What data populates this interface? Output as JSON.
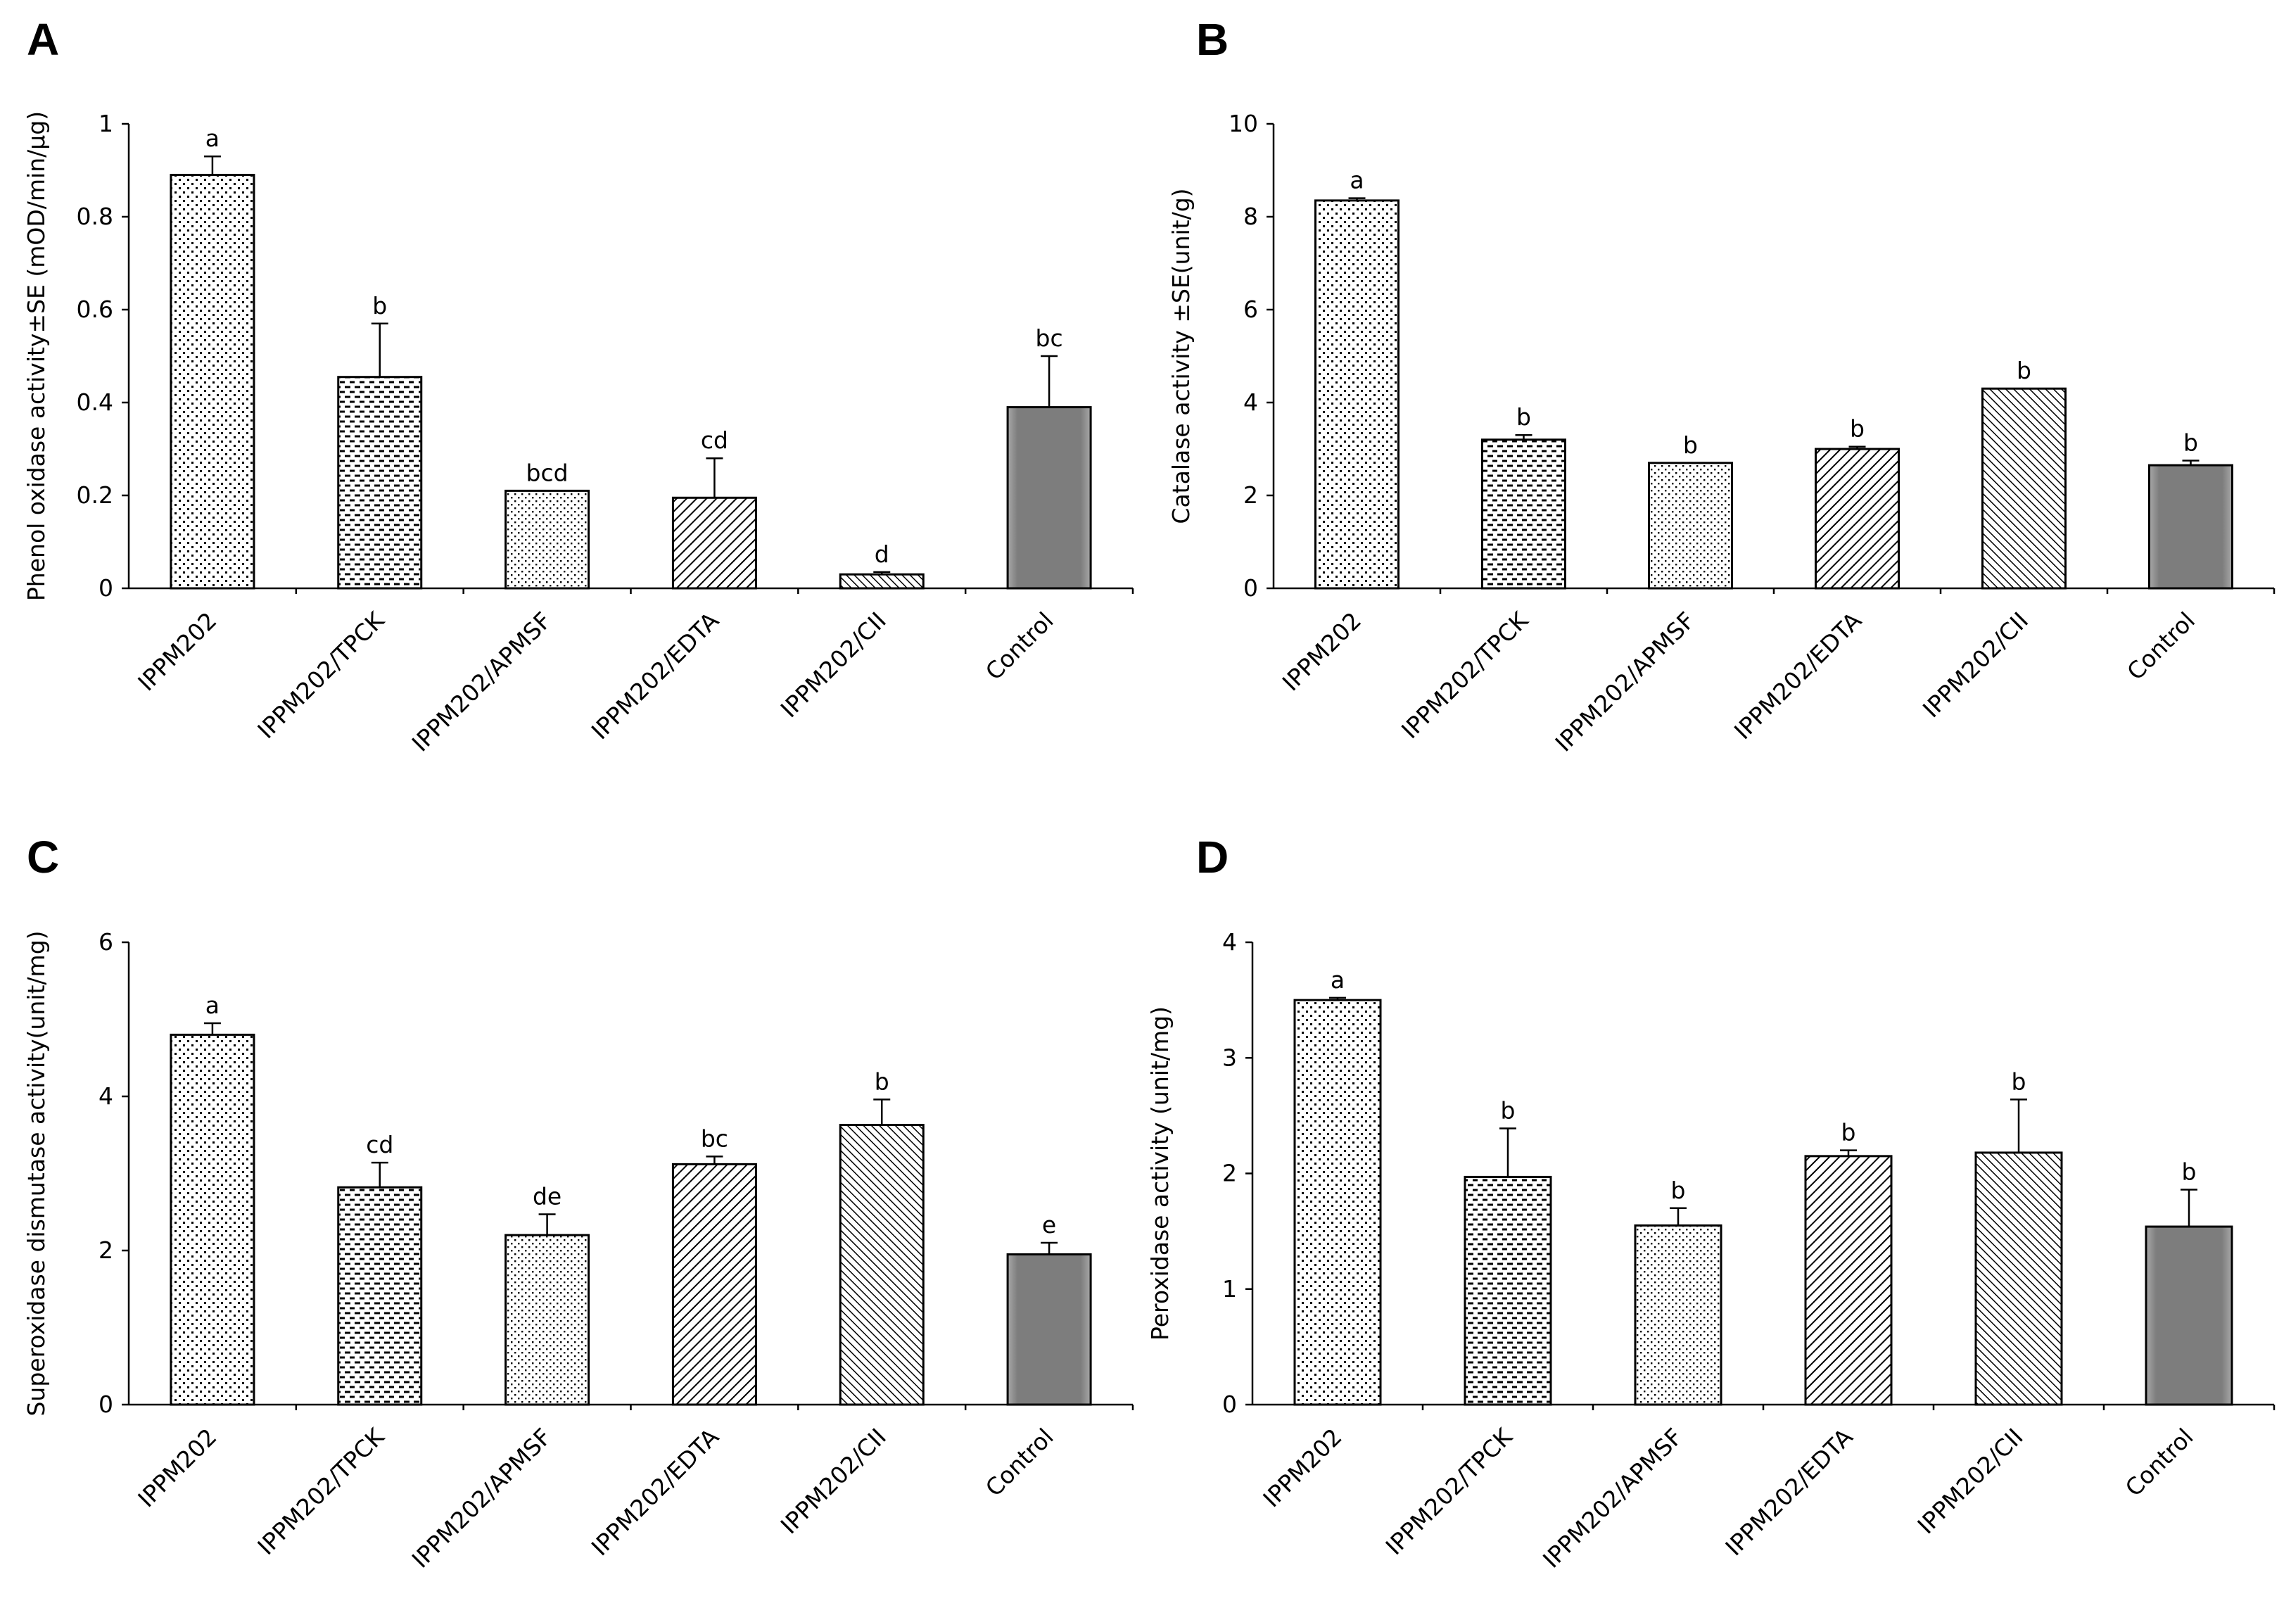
{
  "chart_data": [
    {
      "panel": "A",
      "type": "bar",
      "categories": [
        "IPPM202",
        "IPPM202/TPCK",
        "IPPM202/APMSF",
        "IPPM202/EDTA",
        "IPPM202/CII",
        "Control"
      ],
      "values": [
        0.89,
        0.455,
        0.21,
        0.195,
        0.03,
        0.39
      ],
      "errors": [
        0.04,
        0.115,
        0.0,
        0.085,
        0.005,
        0.11
      ],
      "letters": [
        "a",
        "b",
        "bcd",
        "cd",
        "d",
        "bc"
      ],
      "ylabel": "Phenol oxidase activity±SE (mOD/min/µg)",
      "ylim": [
        0,
        1
      ],
      "yticks": [
        0,
        0.2,
        0.4,
        0.6,
        0.8,
        1
      ],
      "ytick_labels": [
        "0",
        "0.2",
        "0.4",
        "0.6",
        "0.8",
        "1"
      ]
    },
    {
      "panel": "B",
      "type": "bar",
      "categories": [
        "IPPM202",
        "IPPM202/TPCK",
        "IPPM202/APMSF",
        "IPPM202/EDTA",
        "IPPM202/CII",
        "Control"
      ],
      "values": [
        8.35,
        3.2,
        2.7,
        3.0,
        4.3,
        2.65
      ],
      "errors": [
        0.05,
        0.1,
        0.0,
        0.05,
        0.0,
        0.1
      ],
      "letters": [
        "a",
        "b",
        "b",
        "b",
        "b",
        "b"
      ],
      "ylabel": "Catalase activity ±SE(unit/g)",
      "ylim": [
        0,
        10
      ],
      "yticks": [
        0,
        2,
        4,
        6,
        8,
        10
      ],
      "ytick_labels": [
        "0",
        "2",
        "4",
        "6",
        "8",
        "10"
      ]
    },
    {
      "panel": "C",
      "type": "bar",
      "categories": [
        "IPPM202",
        "IPPM202/TPCK",
        "IPPM202/APMSF",
        "IPPM202/EDTA",
        "IPPM202/CII",
        "Control"
      ],
      "values": [
        4.8,
        2.82,
        2.2,
        3.12,
        3.63,
        1.95
      ],
      "errors": [
        0.15,
        0.32,
        0.27,
        0.1,
        0.33,
        0.15
      ],
      "letters": [
        "a",
        "cd",
        "de",
        "bc",
        "b",
        "e"
      ],
      "ylabel": "Superoxidase dismutase activity(unit/mg)",
      "ylim": [
        0,
        6
      ],
      "yticks": [
        0,
        2,
        4,
        6
      ],
      "ytick_labels": [
        "0",
        "2",
        "4",
        "6"
      ]
    },
    {
      "panel": "D",
      "type": "bar",
      "categories": [
        "IPPM202",
        "IPPM202/TPCK",
        "IPPM202/APMSF",
        "IPPM202/EDTA",
        "IPPM202/CII",
        "Control"
      ],
      "values": [
        3.5,
        1.97,
        1.55,
        2.15,
        2.18,
        1.54
      ],
      "errors": [
        0.02,
        0.42,
        0.15,
        0.05,
        0.46,
        0.32
      ],
      "letters": [
        "a",
        "b",
        "b",
        "b",
        "b",
        "b"
      ],
      "ylabel": "Peroxidase activity (unit/mg)",
      "ylim": [
        0,
        4
      ],
      "yticks": [
        0,
        1,
        2,
        3,
        4
      ],
      "ytick_labels": [
        "0",
        "1",
        "2",
        "3",
        "4"
      ]
    }
  ]
}
